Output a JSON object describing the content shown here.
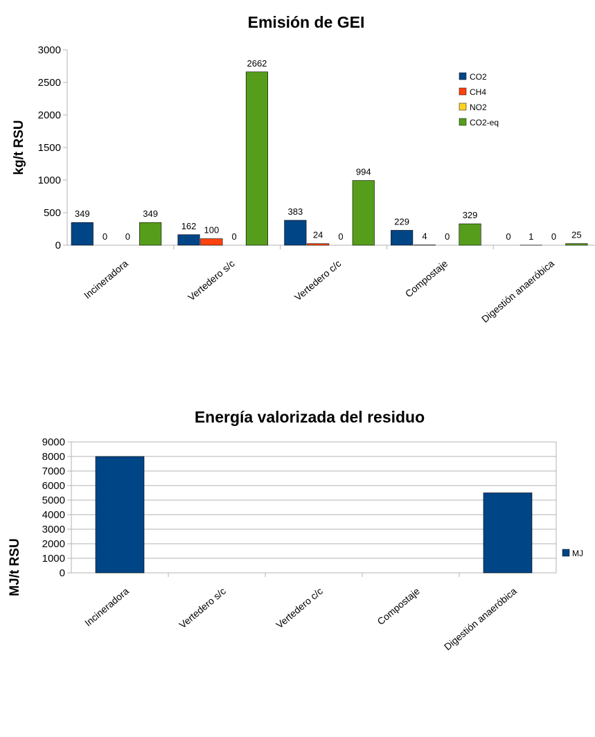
{
  "colors": {
    "CO2": "#004586",
    "CH4": "#ff420e",
    "NO2": "#ffd320",
    "CO2-eq": "#579d1c",
    "MJ": "#004586",
    "grid": "#b3b3b3",
    "axis": "#b3b3b3"
  },
  "chart_data": [
    {
      "type": "bar",
      "title": "Emisión de GEI",
      "xlabel": "",
      "ylabel": "kg/t RSU",
      "ylim": [
        0,
        3000
      ],
      "yticks": [
        "0",
        "500",
        "1000",
        "1500",
        "2000",
        "2500",
        "3000"
      ],
      "grid": false,
      "legend": "top-right",
      "categories": [
        "Incineradora",
        "Vertedero s/c",
        "Vertedero c/c",
        "Compostaje",
        "Digestión anaeróbica"
      ],
      "series": [
        {
          "name": "CO2",
          "values": [
            349,
            162,
            383,
            229,
            0
          ],
          "labels": [
            "349",
            "162",
            "383",
            "229",
            "0"
          ]
        },
        {
          "name": "CH4",
          "values": [
            0,
            100,
            24,
            4,
            1
          ],
          "labels": [
            "0",
            "100",
            "24",
            "4",
            "1"
          ]
        },
        {
          "name": "NO2",
          "values": [
            0,
            0,
            0,
            0,
            0
          ],
          "labels": [
            "0",
            "0",
            "0",
            "0",
            "0"
          ]
        },
        {
          "name": "CO2-eq",
          "values": [
            349,
            2662,
            994,
            329,
            25
          ],
          "labels": [
            "349",
            "2662",
            "994",
            "329",
            "25"
          ]
        }
      ]
    },
    {
      "type": "bar",
      "title": "Energía valorizada del residuo",
      "xlabel": "",
      "ylabel": "MJ/t RSU",
      "ylim": [
        0,
        9000
      ],
      "yticks": [
        "0",
        "1000",
        "2000",
        "3000",
        "4000",
        "5000",
        "6000",
        "7000",
        "8000",
        "9000"
      ],
      "grid": true,
      "legend": "right",
      "categories": [
        "Incineradora",
        "Vertedero s/c",
        "Vertedero c/c",
        "Compostaje",
        "Digestión anaeróbica"
      ],
      "series": [
        {
          "name": "MJ",
          "values": [
            8000,
            0,
            0,
            0,
            5500
          ]
        }
      ]
    }
  ]
}
